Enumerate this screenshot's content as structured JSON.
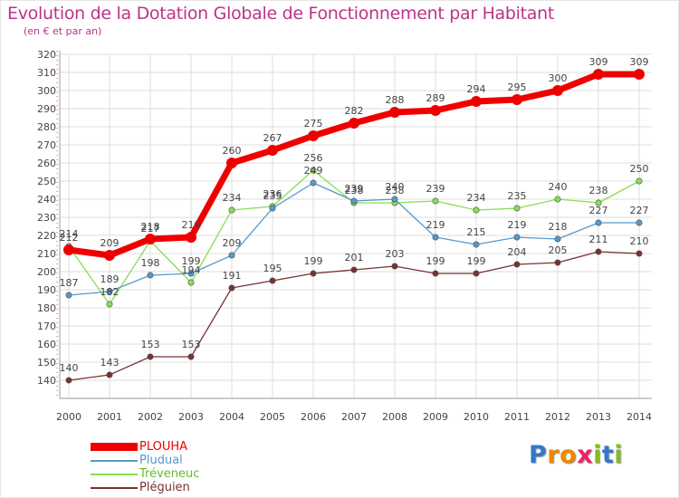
{
  "header": {
    "title": "Evolution de la Dotation Globale de Fonctionnement par Habitant",
    "subtitle": "(en € et par an)"
  },
  "colors": {
    "title": "#bb3388",
    "grid": "#dddddd",
    "axis": "#999999",
    "label": "#444444"
  },
  "chart_data": {
    "type": "line",
    "title": "Evolution de la Dotation Globale de Fonctionnement par Habitant",
    "subtitle": "(en € et par an)",
    "xlabel": "",
    "ylabel": "",
    "x": [
      "2000",
      "2001",
      "2002",
      "2003",
      "2004",
      "2005",
      "2006",
      "2007",
      "2008",
      "2009",
      "2010",
      "2011",
      "2012",
      "2013",
      "2014"
    ],
    "ylim": [
      130,
      320
    ],
    "yticks": [
      140,
      150,
      160,
      170,
      180,
      190,
      200,
      210,
      220,
      230,
      240,
      250,
      260,
      270,
      280,
      290,
      300,
      310,
      320
    ],
    "grid": true,
    "legend_position": "bottom-left",
    "series": [
      {
        "name": "PLOUHA",
        "color": "#ee0000",
        "values": [
          212,
          209,
          218,
          219,
          260,
          267,
          275,
          282,
          288,
          289,
          294,
          295,
          300,
          309,
          309
        ],
        "labels": [
          "212",
          "209",
          "218",
          "219",
          "260",
          "267",
          "275",
          "282",
          "288",
          "289",
          "294",
          "295",
          "300",
          "309",
          "309"
        ]
      },
      {
        "name": "Pludual",
        "color": "#5599cc",
        "values": [
          187,
          189,
          198,
          199,
          209,
          235,
          249,
          239,
          240,
          219,
          215,
          219,
          218,
          227,
          227
        ],
        "labels": [
          "187",
          "189",
          "198",
          "199",
          "209",
          "235",
          "249",
          "239",
          "240",
          "219",
          "215",
          "219",
          "218",
          "227",
          "227"
        ]
      },
      {
        "name": "Tréveneuc",
        "color": "#88dd55",
        "values": [
          214,
          182,
          217,
          194,
          234,
          236,
          256,
          238,
          238,
          239,
          234,
          235,
          240,
          238,
          250
        ],
        "labels": [
          "214",
          "182",
          "217",
          "194",
          "234",
          "236",
          "256",
          "238",
          "238",
          "239",
          "234",
          "235",
          "240",
          "238",
          "250"
        ]
      },
      {
        "name": "Pléguien",
        "color": "#773333",
        "values": [
          140,
          143,
          153,
          153,
          191,
          195,
          199,
          201,
          203,
          199,
          199,
          204,
          205,
          211,
          210
        ],
        "labels": [
          "140",
          "143",
          "153",
          "153",
          "191",
          "195",
          "199",
          "201",
          "203",
          "199",
          "199",
          "204",
          "205",
          "211",
          "210"
        ]
      }
    ]
  },
  "logo": {
    "letters": [
      "P",
      "r",
      "o",
      "x",
      "i",
      "t",
      "i"
    ],
    "colors": [
      "#3377cc",
      "#ee8800",
      "#ee8800",
      "#ee2266",
      "#88bb22",
      "#3377cc",
      "#88bb22"
    ]
  }
}
